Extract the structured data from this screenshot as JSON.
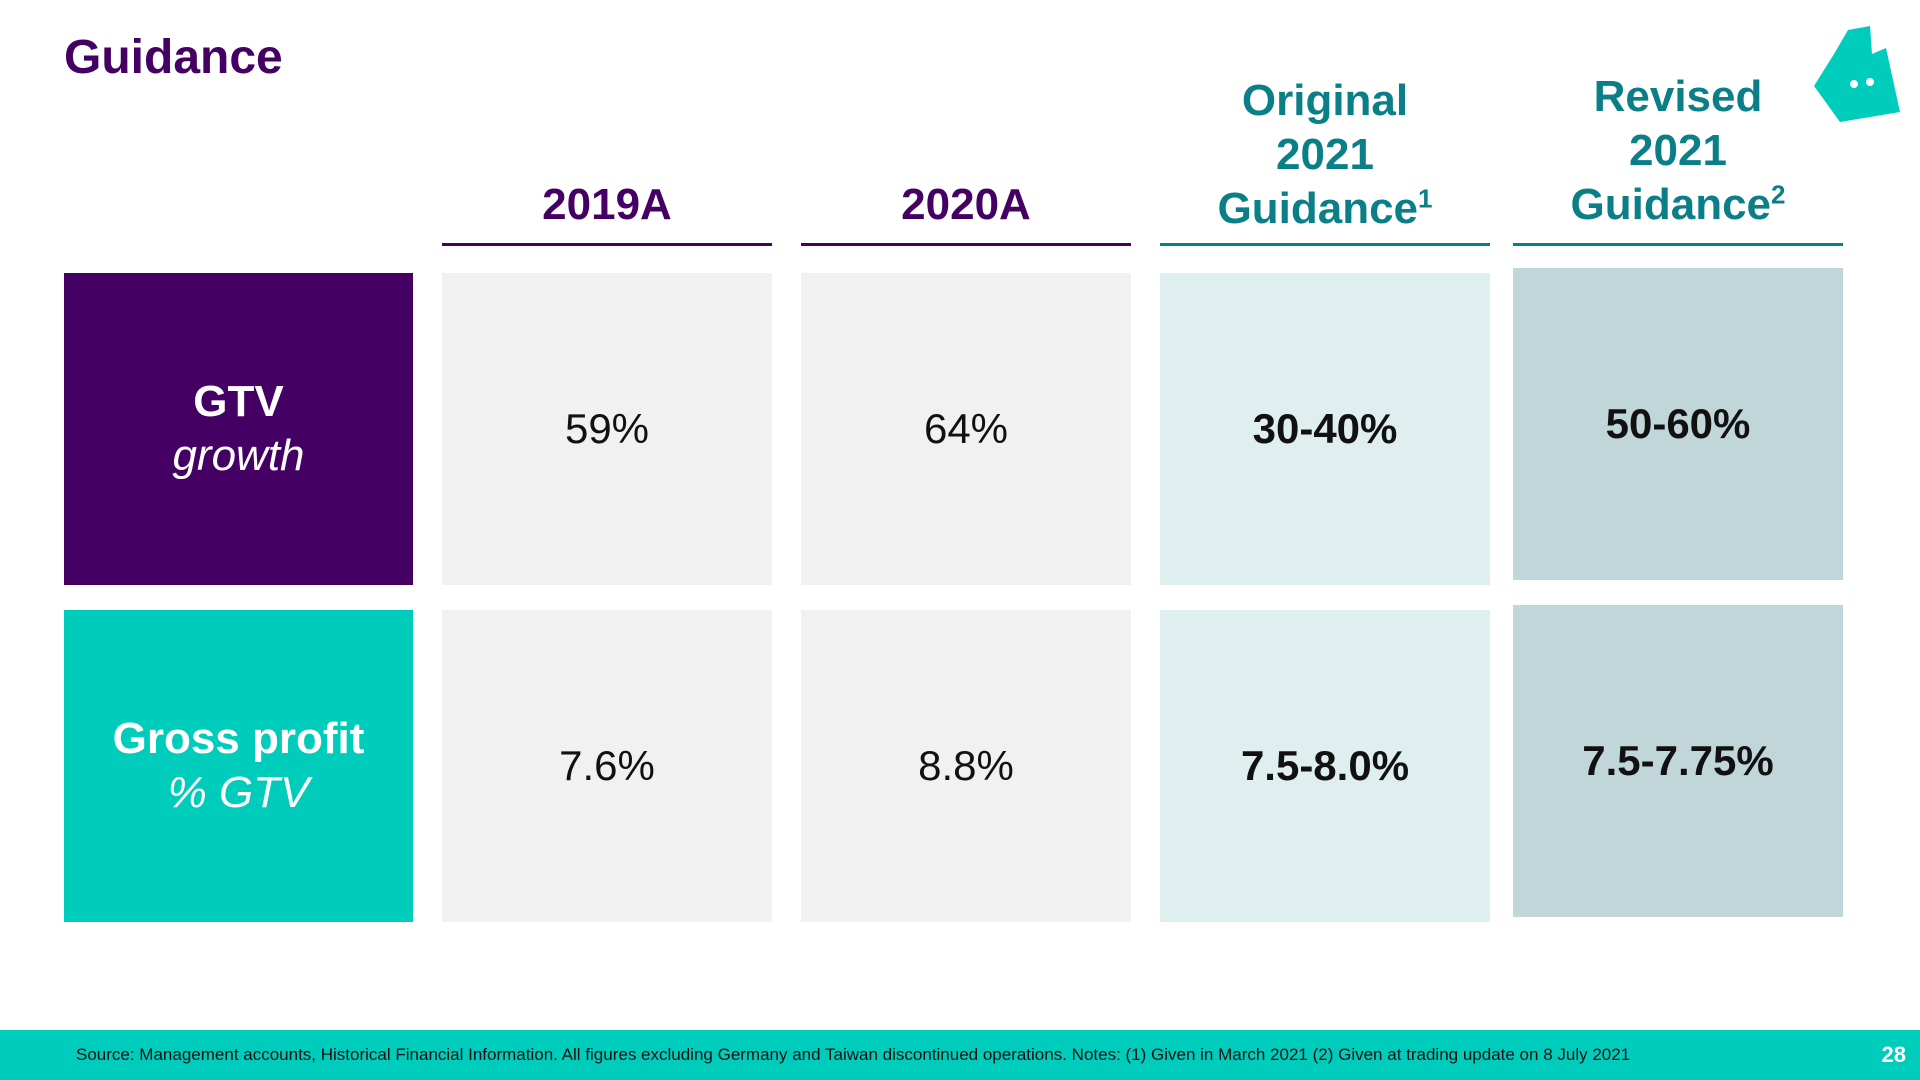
{
  "page": {
    "title": "Guidance",
    "page_number": "28"
  },
  "columns": [
    {
      "lines": [
        "2019A"
      ],
      "sup": ""
    },
    {
      "lines": [
        "2020A"
      ],
      "sup": ""
    },
    {
      "lines": [
        "Original",
        "2021",
        "Guidance"
      ],
      "sup": "1"
    },
    {
      "lines": [
        "Revised",
        "2021",
        "Guidance"
      ],
      "sup": "2"
    }
  ],
  "rows": [
    {
      "label_main": "GTV",
      "label_sub": "growth",
      "values": [
        "59%",
        "64%",
        "30-40%",
        "50-60%"
      ]
    },
    {
      "label_main": "Gross profit",
      "label_sub": "% GTV",
      "values": [
        "7.6%",
        "8.8%",
        "7.5-8.0%",
        "7.5-7.75%"
      ]
    }
  ],
  "footer": {
    "source": "Source: Management accounts, Historical Financial Information. All figures excluding Germany and Taiwan discontinued operations. Notes: (1) Given in March 2021  (2) Given at trading update on 8 July 2021"
  },
  "colors": {
    "brand_purple": "#440063",
    "brand_teal": "#00ccbc",
    "header_teal": "#0b7f87"
  },
  "logo": {
    "icon": "kangaroo-logo-icon"
  }
}
